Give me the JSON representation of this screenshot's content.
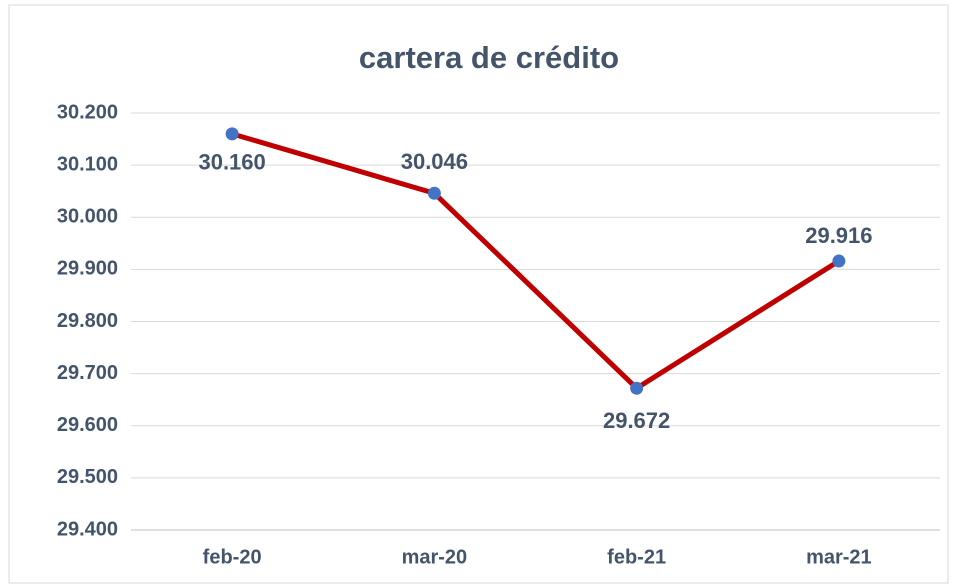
{
  "chart_data": {
    "type": "line",
    "title": "cartera de crédito",
    "categories": [
      "feb-20",
      "mar-20",
      "feb-21",
      "mar-21"
    ],
    "series": [
      {
        "name": "cartera de crédito",
        "color": "#c00000",
        "marker_color": "#4472c4",
        "values": [
          30160,
          30046,
          29672,
          29916
        ],
        "value_labels": [
          "30.160",
          "30.046",
          "29.672",
          "29.916"
        ]
      }
    ],
    "ylim": [
      29400,
      30200
    ],
    "yticks": [
      {
        "value": 29400,
        "label": "29.400"
      },
      {
        "value": 29500,
        "label": "29.500"
      },
      {
        "value": 29600,
        "label": "29.600"
      },
      {
        "value": 29700,
        "label": "29.700"
      },
      {
        "value": 29800,
        "label": "29.800"
      },
      {
        "value": 29900,
        "label": "29.900"
      },
      {
        "value": 30000,
        "label": "30.000"
      },
      {
        "value": 30100,
        "label": "30.100"
      },
      {
        "value": 30200,
        "label": "30.200"
      }
    ],
    "grid": true
  }
}
